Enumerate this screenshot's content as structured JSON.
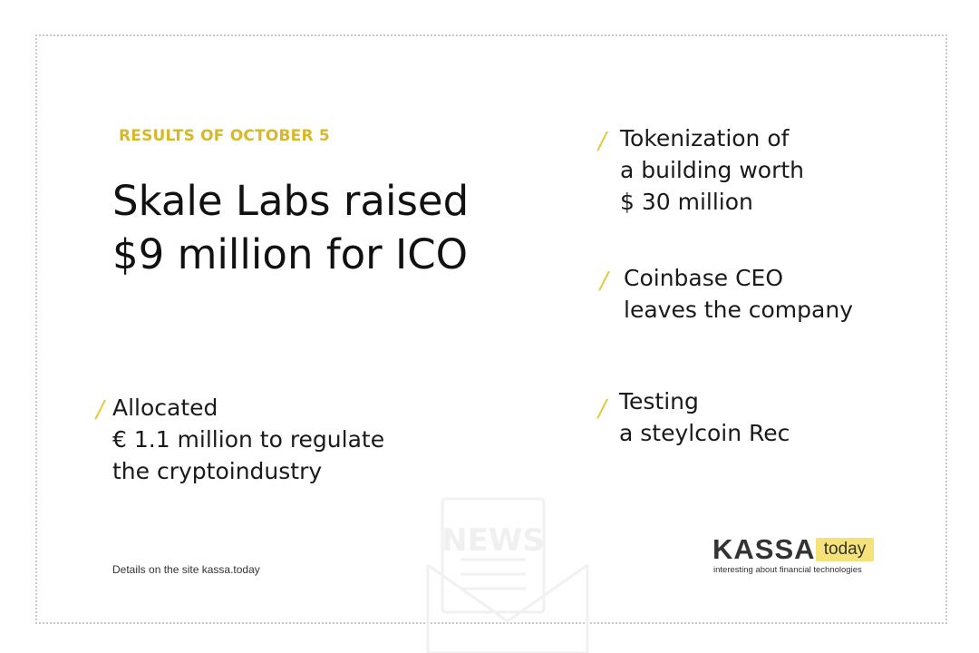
{
  "header": {
    "kicker": "RESULTS OF OCTOBER 5",
    "headline_lines": [
      "Skale Labs raised",
      "$9 million for ICO"
    ]
  },
  "news": [
    {
      "lines": [
        "Tokenization of",
        "a building worth",
        "$ 30 million"
      ]
    },
    {
      "lines": [
        "Coinbase CEO",
        "leaves the company"
      ]
    },
    {
      "lines": [
        "Allocated",
        "€ 1.1 million to regulate",
        "the cryptoindustry"
      ]
    },
    {
      "lines": [
        "Testing",
        "a steylcoin Rec"
      ]
    }
  ],
  "bullet_glyph": "/",
  "footer": {
    "note": "Details on the site kassa.today"
  },
  "logo": {
    "word": "KASSA",
    "badge": "today",
    "tagline": "interesting about financial technologies"
  },
  "watermark": {
    "icon": "news-envelope-icon",
    "text": "NEWS"
  },
  "colors": {
    "accent": "#d7b82a",
    "bullet": "#e4c93f",
    "logo_badge": "#f5e27a",
    "text": "#1a1a1a",
    "frame": "#c9c9c9"
  }
}
